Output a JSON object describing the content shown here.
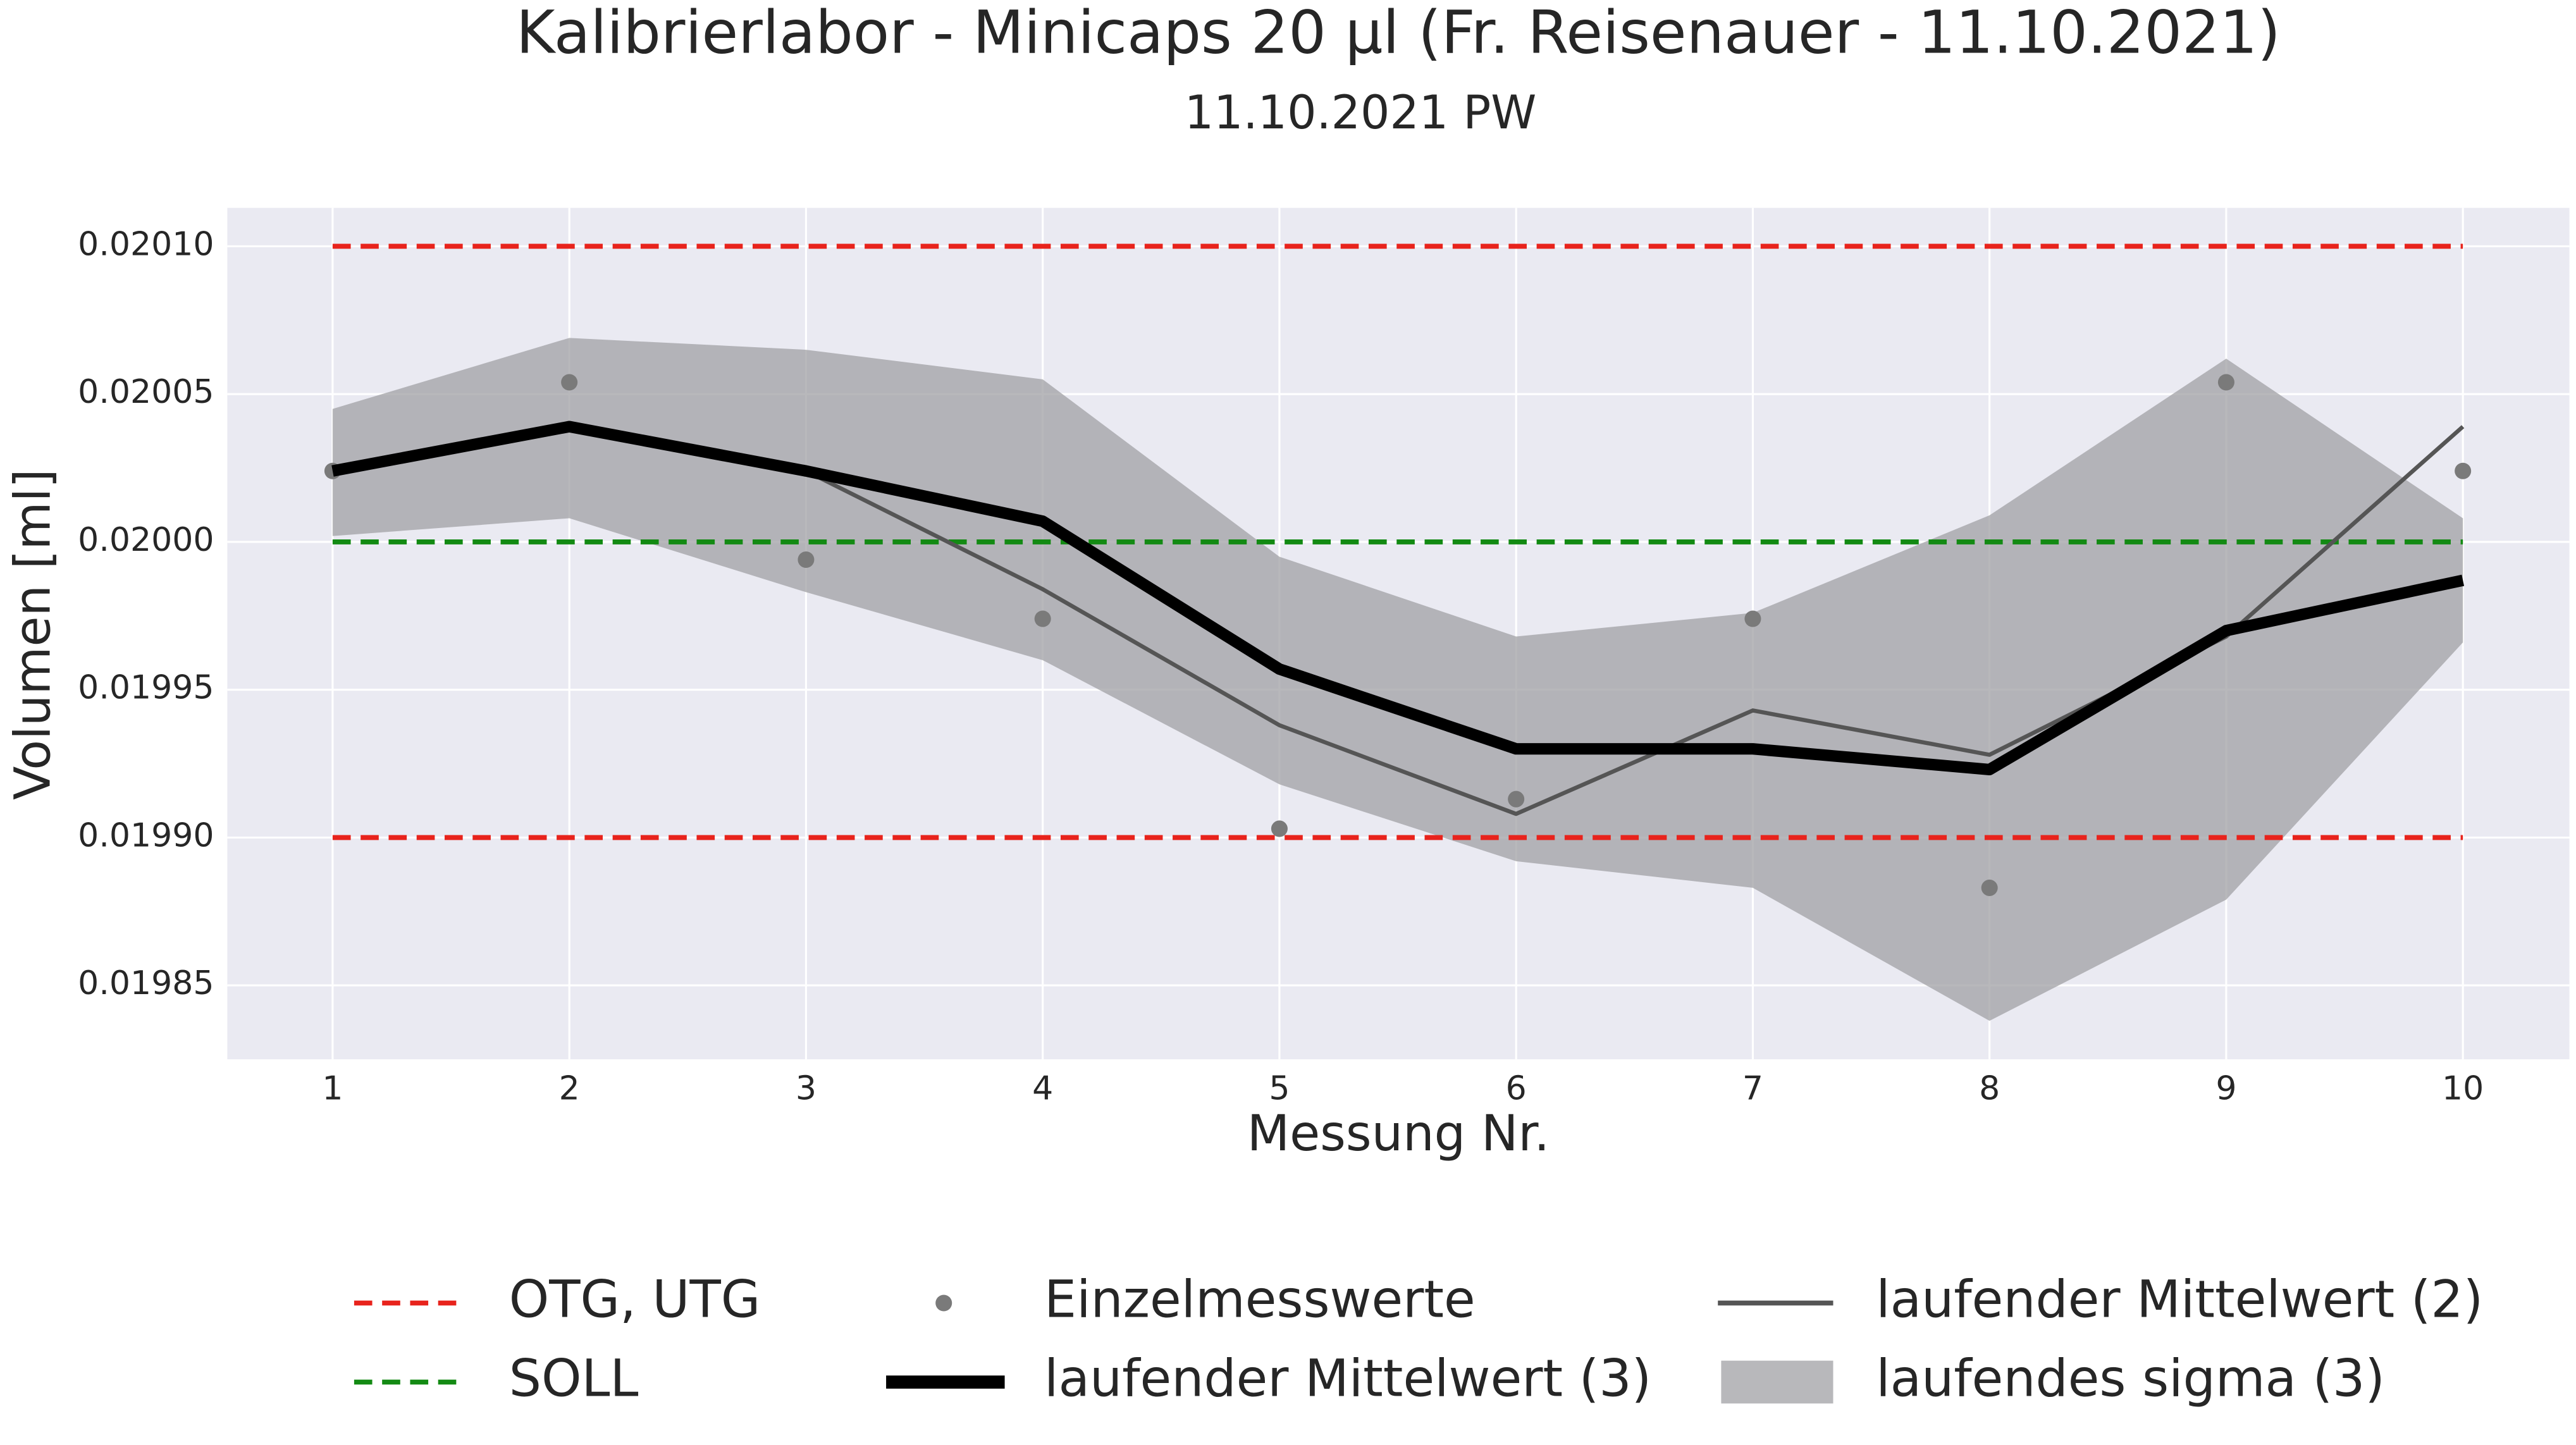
{
  "chart_data": {
    "type": "line",
    "title": "Kalibrierlabor - Minicaps 20 µl (Fr. Reisenauer - 11.10.2021)",
    "subtitle": "11.10.2021 PW",
    "x_label": "Messung Nr.",
    "y_label": "Volumen [ml]",
    "x": [
      1,
      2,
      3,
      4,
      5,
      6,
      7,
      8,
      9,
      10
    ],
    "xlim": [
      0.555,
      10.45
    ],
    "xticks": [
      1,
      2,
      3,
      4,
      5,
      6,
      7,
      8,
      9,
      10
    ],
    "ylim": [
      0.019825,
      0.020113
    ],
    "yticks": [
      0.01985,
      {
        "value": 0.0199,
        "label": "0.01990"
      },
      0.01995,
      {
        "value": 0.02,
        "label": "0.02000"
      },
      0.02005,
      {
        "value": 0.0201,
        "label": "0.02010"
      }
    ],
    "grid": true,
    "limits": [
      {
        "name": "OTG, UTG",
        "color": "#e8231c",
        "values": [
          0.0201,
          0.0199
        ]
      },
      {
        "name": "SOLL",
        "color": "#138a13",
        "values": [
          0.02
        ]
      }
    ],
    "band": {
      "name": "laufendes sigma (3)",
      "color": "#a0a0a4",
      "upper": [
        0.020045,
        0.020069,
        0.020065,
        0.020055,
        0.019995,
        0.019968,
        0.019976,
        0.020009,
        0.020062,
        0.020008
      ],
      "lower": [
        0.020002,
        0.020008,
        0.019983,
        0.01996,
        0.019918,
        0.019892,
        0.019883,
        0.019838,
        0.019879,
        0.019966
      ]
    },
    "series": [
      {
        "name": "Einzelmesswerte",
        "color": "#7a7a7a",
        "style": "points",
        "values": [
          0.020024,
          0.020054,
          0.019994,
          0.019974,
          0.019903,
          0.019913,
          0.019974,
          0.019883,
          0.020054,
          0.020024
        ]
      },
      {
        "name": "laufender Mittelwert (3)",
        "color": "#000000",
        "style": "thick",
        "values": [
          0.020024,
          0.020039,
          0.020024,
          0.020007,
          0.019957,
          0.01993,
          0.01993,
          0.019923,
          0.01997,
          0.019987
        ]
      },
      {
        "name": "laufender Mittelwert (2)",
        "color": "#555555",
        "style": "thin",
        "values": [
          null,
          0.020039,
          0.020024,
          0.019984,
          0.019938,
          0.019908,
          0.019943,
          0.019928,
          0.019968,
          0.020039
        ]
      }
    ]
  }
}
